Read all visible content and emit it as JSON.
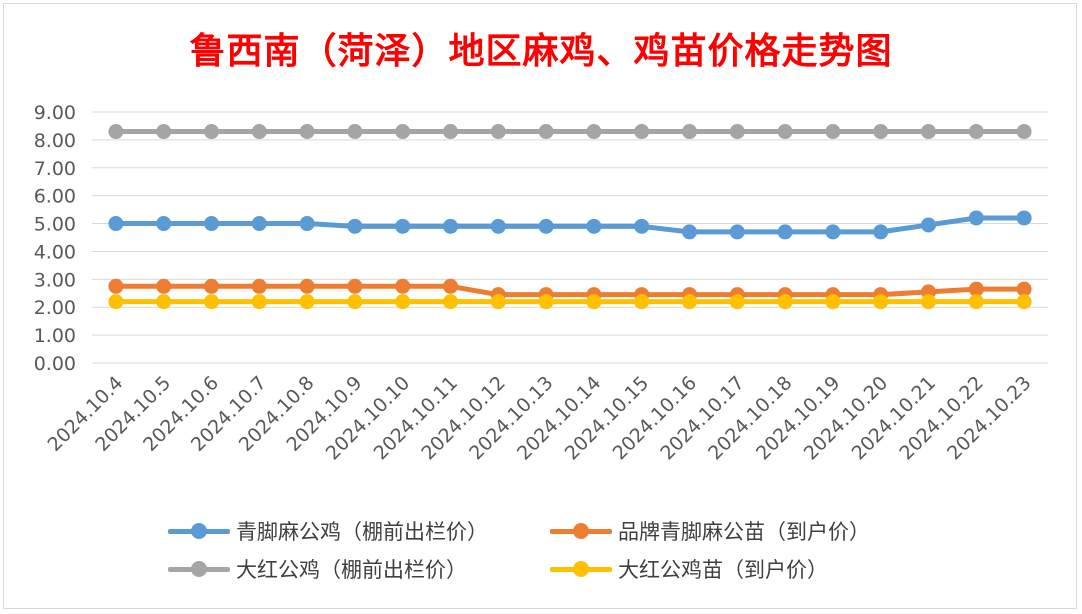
{
  "chart_data": {
    "type": "line",
    "title": "鲁西南（菏泽）地区麻鸡、鸡苗价格走势图",
    "categories": [
      "2024.10.4",
      "2024.10.5",
      "2024.10.6",
      "2024.10.7",
      "2024.10.8",
      "2024.10.9",
      "2024.10.10",
      "2024.10.11",
      "2024.10.12",
      "2024.10.13",
      "2024.10.14",
      "2024.10.15",
      "2024.10.16",
      "2024.10.17",
      "2024.10.18",
      "2024.10.19",
      "2024.10.20",
      "2024.10.21",
      "2024.10.22",
      "2024.10.23"
    ],
    "y_ticks": [
      "0.00",
      "1.00",
      "2.00",
      "3.00",
      "4.00",
      "5.00",
      "6.00",
      "7.00",
      "8.00",
      "9.00"
    ],
    "ylim": [
      0,
      9
    ],
    "grid": true,
    "legend_position": "bottom",
    "series": [
      {
        "name": "青脚麻公鸡（棚前出栏价）",
        "color": "#5b9bd5",
        "values": [
          5.0,
          5.0,
          5.0,
          5.0,
          5.0,
          4.9,
          4.9,
          4.9,
          4.9,
          4.9,
          4.9,
          4.9,
          4.7,
          4.7,
          4.7,
          4.7,
          4.7,
          4.95,
          5.2,
          5.2
        ]
      },
      {
        "name": "品牌青脚麻公苗（到户价）",
        "color": "#ed7d31",
        "values": [
          2.75,
          2.75,
          2.75,
          2.75,
          2.75,
          2.75,
          2.75,
          2.75,
          2.45,
          2.45,
          2.45,
          2.45,
          2.45,
          2.45,
          2.45,
          2.45,
          2.45,
          2.55,
          2.65,
          2.65
        ]
      },
      {
        "name": "大红公鸡（棚前出栏价）",
        "color": "#a5a5a5",
        "values": [
          8.3,
          8.3,
          8.3,
          8.3,
          8.3,
          8.3,
          8.3,
          8.3,
          8.3,
          8.3,
          8.3,
          8.3,
          8.3,
          8.3,
          8.3,
          8.3,
          8.3,
          8.3,
          8.3,
          8.3
        ]
      },
      {
        "name": "大红公鸡苗（到户价）",
        "color": "#ffc000",
        "values": [
          2.2,
          2.2,
          2.2,
          2.2,
          2.2,
          2.2,
          2.2,
          2.2,
          2.2,
          2.2,
          2.2,
          2.2,
          2.2,
          2.2,
          2.2,
          2.2,
          2.2,
          2.2,
          2.2,
          2.2
        ]
      }
    ],
    "legend_order": [
      0,
      1,
      2,
      3
    ]
  }
}
